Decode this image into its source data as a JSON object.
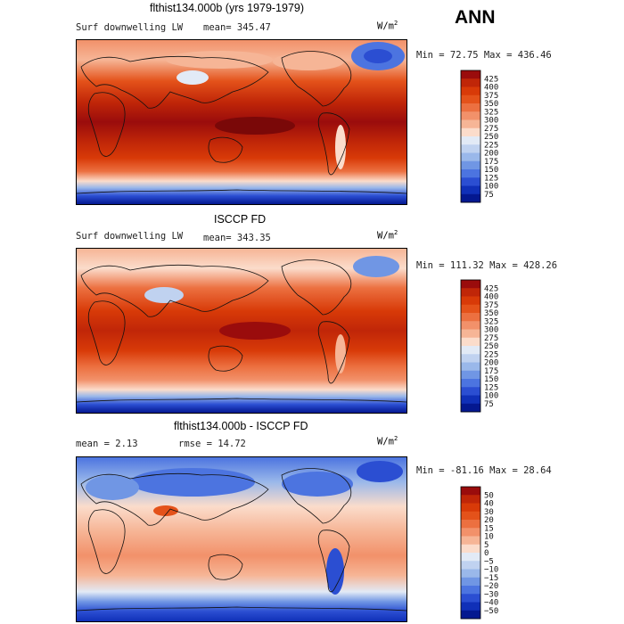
{
  "header": {
    "season": "ANN"
  },
  "panels": [
    {
      "id": "model",
      "title": "flthist134.000b (yrs 1979-1979)",
      "variable": "Surf downwelling LW",
      "stat": "mean=  345.47",
      "units_base": "W/m",
      "units_exp": "2",
      "minmax": "Min =  72.75 Max = 436.46",
      "colorbar": [
        "425",
        "400",
        "375",
        "350",
        "325",
        "300",
        "275",
        "250",
        "225",
        "200",
        "175",
        "150",
        "125",
        "100",
        "75"
      ],
      "palette": [
        "#9a0c0c",
        "#c02608",
        "#d83a08",
        "#e4521a",
        "#ec7040",
        "#f2916a",
        "#f6b596",
        "#fbdccb",
        "#e2eaf6",
        "#c0d2f0",
        "#9ab8ea",
        "#7096e4",
        "#4c74e0",
        "#2b4ed2",
        "#1030b8",
        "#041890"
      ]
    },
    {
      "id": "obs",
      "title": "ISCCP FD",
      "variable": "Surf downwelling LW",
      "stat": "mean= 343.35",
      "units_base": "W/m",
      "units_exp": "2",
      "minmax": "Min = 111.32 Max = 428.26",
      "colorbar": [
        "425",
        "400",
        "375",
        "350",
        "325",
        "300",
        "275",
        "250",
        "225",
        "200",
        "175",
        "150",
        "125",
        "100",
        "75"
      ],
      "palette": [
        "#9a0c0c",
        "#c02608",
        "#d83a08",
        "#e4521a",
        "#ec7040",
        "#f2916a",
        "#f6b596",
        "#fbdccb",
        "#e2eaf6",
        "#c0d2f0",
        "#9ab8ea",
        "#7096e4",
        "#4c74e0",
        "#2b4ed2",
        "#1030b8",
        "#041890"
      ]
    },
    {
      "id": "diff",
      "title": "flthist134.000b - ISCCP FD",
      "variable": "mean =   2.13",
      "stat": "rmse =  14.72",
      "units_base": "W/m",
      "units_exp": "2",
      "minmax": "Min = -81.16 Max =  28.64",
      "colorbar": [
        "50",
        "40",
        "30",
        "20",
        "15",
        "10",
        "5",
        "0",
        "−5",
        "−10",
        "−15",
        "−20",
        "−30",
        "−40",
        "−50"
      ],
      "palette": [
        "#9a0c0c",
        "#c02608",
        "#d83a08",
        "#e4521a",
        "#ec7040",
        "#f2916a",
        "#f6b596",
        "#fbdccb",
        "#e2eaf6",
        "#c0d2f0",
        "#9ab8ea",
        "#7096e4",
        "#4c74e0",
        "#2b4ed2",
        "#1030b8",
        "#041890"
      ]
    }
  ]
}
